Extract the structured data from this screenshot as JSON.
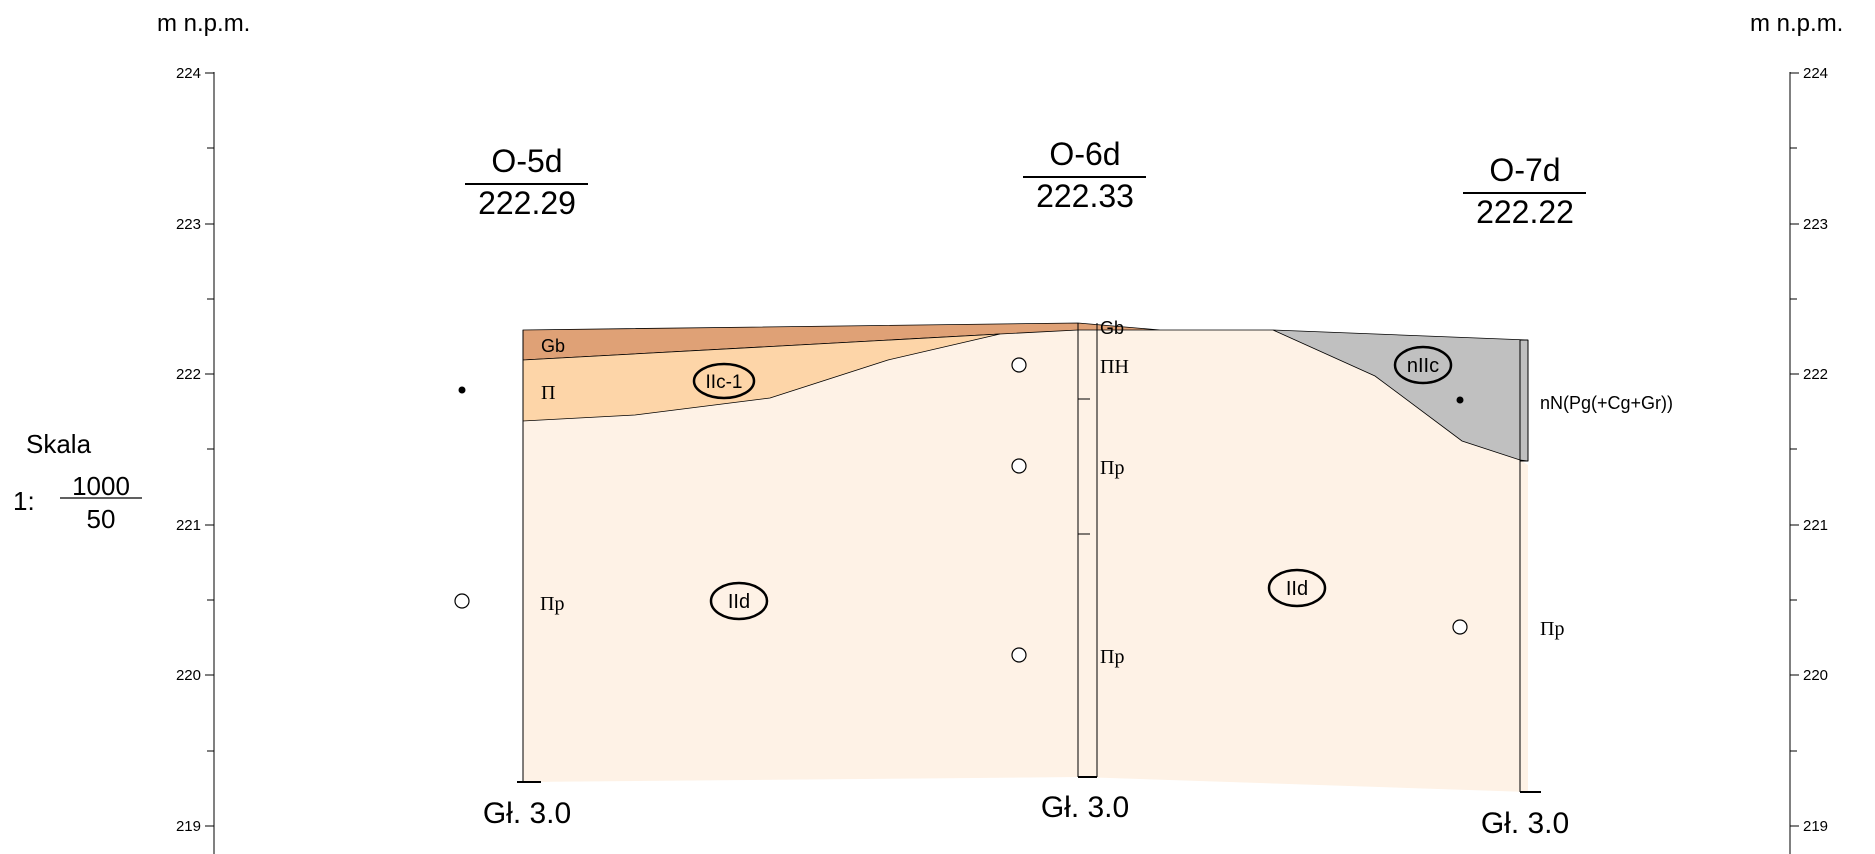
{
  "axis": {
    "unit_left": "m n.p.m.",
    "unit_right": "m n.p.m.",
    "ticks": [
      "224",
      "223",
      "222",
      "221",
      "220",
      "219"
    ]
  },
  "scale": {
    "label": "Skala",
    "prefix": "1:",
    "numerator": "1000",
    "denominator": "50"
  },
  "boreholes": [
    {
      "id": "O-5d",
      "elevation": "222.29",
      "depth": "Gł. 3.0"
    },
    {
      "id": "O-6d",
      "elevation": "222.33",
      "depth": "Gł. 3.0"
    },
    {
      "id": "O-7d",
      "elevation": "222.22",
      "depth": "Gł. 3.0"
    }
  ],
  "soil_labels": {
    "o5_gb": "Gb",
    "o5_pi": "Π",
    "o5_pip": "Πp",
    "o6_gb": "Gb",
    "o6_pih": "ΠH",
    "o6_pip1": "Πp",
    "o6_pip2": "Πp",
    "o7_nn": "nN(Pg(+Cg+Gr))",
    "o7_pip": "Πp"
  },
  "layer_tags": {
    "iic1": "IIc-1",
    "iid_left": "IId",
    "iid_right": "IId",
    "niic": "nIIc"
  },
  "colors": {
    "gb_layer": "#dfa176",
    "pi_layer": "#fdd5a8",
    "base_layer": "#fef2e6",
    "nn_layer": "#c0c0c0"
  }
}
